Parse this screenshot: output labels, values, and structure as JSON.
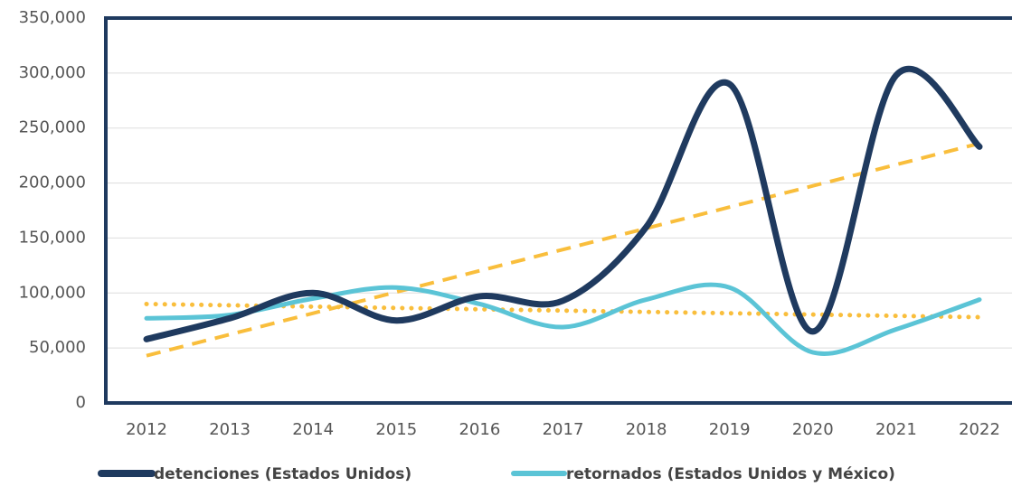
{
  "chart_data": {
    "type": "line",
    "categories": [
      "2012",
      "2013",
      "2014",
      "2015",
      "2016",
      "2017",
      "2018",
      "2019",
      "2020",
      "2021",
      "2022"
    ],
    "series": [
      {
        "name": "detenciones (Estados Unidos)",
        "color": "#1f3a5f",
        "width": 7,
        "smooth": true,
        "values": [
          58000,
          77000,
          100000,
          75000,
          97000,
          93000,
          160000,
          290000,
          65000,
          298000,
          233000
        ]
      },
      {
        "name": "retornados (Estados Unidos y México)",
        "color": "#5bc4d6",
        "width": 5,
        "smooth": true,
        "values": [
          77000,
          80000,
          95000,
          105000,
          90000,
          69000,
          94000,
          105000,
          46000,
          67000,
          94000
        ]
      },
      {
        "color": "#f9be3c",
        "width": 4,
        "dash": "dashed",
        "values": [
          43000,
          62300,
          81600,
          100900,
          120200,
          139500,
          158800,
          178100,
          197400,
          216700,
          236000
        ]
      },
      {
        "color": "#f9be3c",
        "width": 5,
        "dash": "dotted",
        "values": [
          90000,
          88800,
          87600,
          86400,
          85200,
          84000,
          82800,
          81600,
          80400,
          79200,
          78000
        ]
      }
    ],
    "ylim": [
      0,
      350000
    ],
    "yticks": [
      0,
      {
        "value": 50000,
        "label": "50,000"
      },
      {
        "value": 100000,
        "label": "100,000"
      },
      {
        "value": 150000,
        "label": "150,000"
      },
      {
        "value": 200000,
        "label": "200,000"
      },
      {
        "value": 250000,
        "label": "250,000"
      },
      {
        "value": 300000,
        "label": "300,000"
      },
      {
        "value": 350000,
        "label": "350,000"
      }
    ],
    "grid": true,
    "legend": "bottom"
  }
}
